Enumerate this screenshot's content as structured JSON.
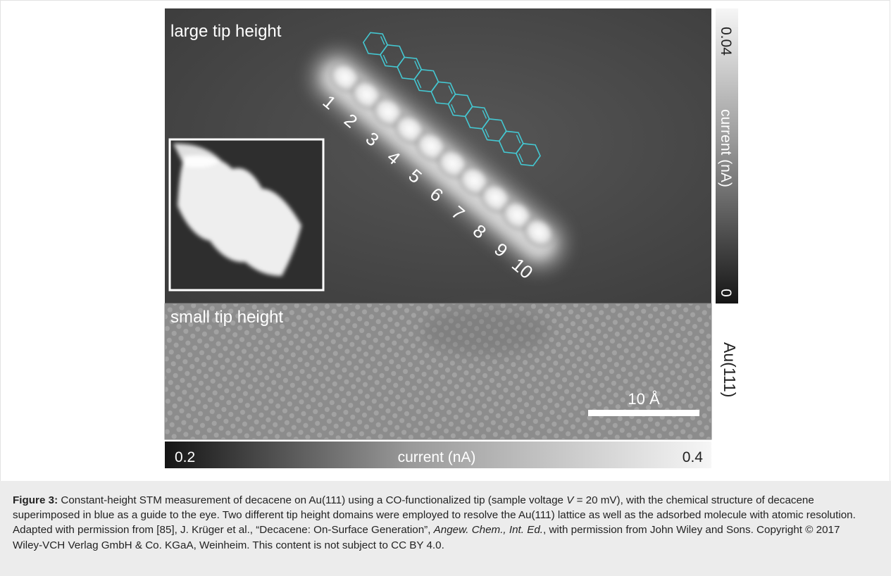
{
  "figure": {
    "top_panel_label": "large tip height",
    "bottom_panel_label": "small tip height",
    "molecule_site_labels": [
      "1",
      "2",
      "3",
      "4",
      "5",
      "6",
      "7",
      "8",
      "9",
      "10"
    ],
    "scale_bar_label": "10 Å",
    "substrate_label": "Au(111)",
    "vertical_colorbar": {
      "label": "current (nA)",
      "max_label": "0.04",
      "min_label": "0"
    },
    "horizontal_colorbar": {
      "label": "current (nA)",
      "min_label": "0.2",
      "max_label": "0.4"
    },
    "overlay_color": "#44c8d2"
  },
  "caption": {
    "label": "Figure 3:",
    "text_1": " Constant-height STM measurement of decacene on Au(111) using a CO-functionalized tip (sample voltage ",
    "voltage_symbol": "V",
    "text_2": " = 20 mV), with the chemical structure of decacene superimposed in blue as a guide to the eye. Two different tip height domains were employed to resolve the Au(111) lattice as well as the adsorbed molecule with atomic resolution. Adapted with permission from [85], J. Krüger et al., “Decacene: On-Surface Generation”, ",
    "journal": "Angew. Chem., Int. Ed.",
    "text_3": ", with permission from John Wiley and Sons. Copyright © 2017 Wiley-VCH Verlag GmbH & Co. KGaA, Weinheim. This content is not subject to CC BY 4.0."
  }
}
